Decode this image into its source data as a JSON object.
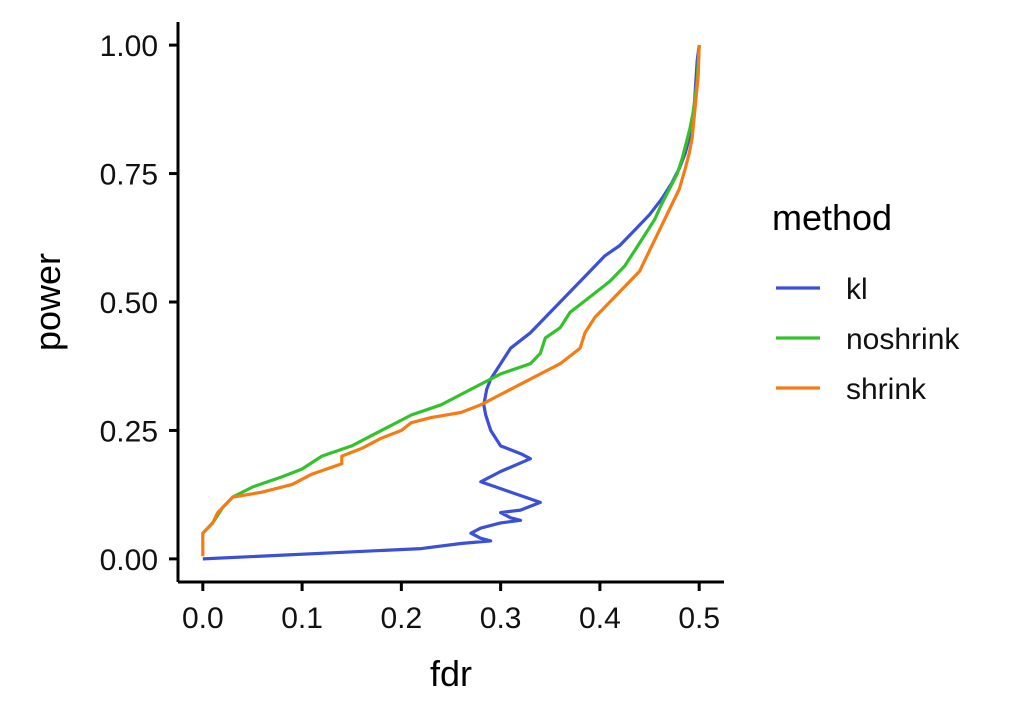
{
  "chart_data": {
    "type": "line",
    "title": "",
    "xlabel": "fdr",
    "ylabel": "power",
    "xlim": [
      -0.025,
      0.525
    ],
    "ylim": [
      -0.045,
      1.045
    ],
    "xticks": [
      0.0,
      0.1,
      0.2,
      0.3,
      0.4,
      0.5
    ],
    "xtick_labels": [
      "0.0",
      "0.1",
      "0.2",
      "0.3",
      "0.4",
      "0.5"
    ],
    "yticks": [
      0.0,
      0.25,
      0.5,
      0.75,
      1.0
    ],
    "ytick_labels": [
      "0.00",
      "0.25",
      "0.50",
      "0.75",
      "1.00"
    ],
    "grid": false,
    "legend": {
      "title": "method",
      "position": "right"
    },
    "series": [
      {
        "name": "kl",
        "color": "#3a50d6",
        "points": [
          [
            0.0,
            0.0
          ],
          [
            0.22,
            0.02
          ],
          [
            0.26,
            0.03
          ],
          [
            0.29,
            0.035
          ],
          [
            0.28,
            0.04
          ],
          [
            0.27,
            0.05
          ],
          [
            0.28,
            0.06
          ],
          [
            0.3,
            0.07
          ],
          [
            0.32,
            0.075
          ],
          [
            0.31,
            0.08
          ],
          [
            0.3,
            0.09
          ],
          [
            0.32,
            0.095
          ],
          [
            0.34,
            0.11
          ],
          [
            0.31,
            0.13
          ],
          [
            0.28,
            0.15
          ],
          [
            0.3,
            0.17
          ],
          [
            0.33,
            0.195
          ],
          [
            0.32,
            0.205
          ],
          [
            0.3,
            0.22
          ],
          [
            0.29,
            0.25
          ],
          [
            0.285,
            0.28
          ],
          [
            0.283,
            0.3
          ],
          [
            0.286,
            0.33
          ],
          [
            0.29,
            0.35
          ],
          [
            0.3,
            0.38
          ],
          [
            0.31,
            0.41
          ],
          [
            0.33,
            0.44
          ],
          [
            0.345,
            0.47
          ],
          [
            0.36,
            0.5
          ],
          [
            0.375,
            0.53
          ],
          [
            0.39,
            0.56
          ],
          [
            0.405,
            0.59
          ],
          [
            0.42,
            0.61
          ],
          [
            0.435,
            0.64
          ],
          [
            0.45,
            0.67
          ],
          [
            0.462,
            0.7
          ],
          [
            0.472,
            0.73
          ],
          [
            0.48,
            0.76
          ],
          [
            0.486,
            0.79
          ],
          [
            0.49,
            0.82
          ],
          [
            0.493,
            0.85
          ],
          [
            0.495,
            0.88
          ],
          [
            0.496,
            0.91
          ],
          [
            0.497,
            0.94
          ],
          [
            0.498,
            0.97
          ],
          [
            0.5,
            1.0
          ]
        ]
      },
      {
        "name": "noshrink",
        "color": "#34c22c",
        "points": [
          [
            0.0,
            0.05
          ],
          [
            0.005,
            0.06
          ],
          [
            0.01,
            0.07
          ],
          [
            0.02,
            0.1
          ],
          [
            0.03,
            0.12
          ],
          [
            0.05,
            0.14
          ],
          [
            0.08,
            0.16
          ],
          [
            0.1,
            0.175
          ],
          [
            0.12,
            0.2
          ],
          [
            0.15,
            0.22
          ],
          [
            0.17,
            0.24
          ],
          [
            0.19,
            0.26
          ],
          [
            0.21,
            0.28
          ],
          [
            0.24,
            0.3
          ],
          [
            0.26,
            0.32
          ],
          [
            0.28,
            0.34
          ],
          [
            0.3,
            0.36
          ],
          [
            0.33,
            0.38
          ],
          [
            0.34,
            0.4
          ],
          [
            0.345,
            0.43
          ],
          [
            0.36,
            0.45
          ],
          [
            0.37,
            0.48
          ],
          [
            0.39,
            0.51
          ],
          [
            0.41,
            0.54
          ],
          [
            0.425,
            0.57
          ],
          [
            0.435,
            0.6
          ],
          [
            0.445,
            0.63
          ],
          [
            0.455,
            0.66
          ],
          [
            0.462,
            0.69
          ],
          [
            0.47,
            0.72
          ],
          [
            0.478,
            0.75
          ],
          [
            0.483,
            0.78
          ],
          [
            0.487,
            0.81
          ],
          [
            0.491,
            0.84
          ],
          [
            0.494,
            0.87
          ],
          [
            0.496,
            0.9
          ],
          [
            0.498,
            0.93
          ],
          [
            0.5,
            1.0
          ]
        ]
      },
      {
        "name": "shrink",
        "color": "#f57c14",
        "points": [
          [
            0.0,
            0.005
          ],
          [
            0.0,
            0.05
          ],
          [
            0.01,
            0.07
          ],
          [
            0.015,
            0.09
          ],
          [
            0.02,
            0.1
          ],
          [
            0.03,
            0.12
          ],
          [
            0.06,
            0.13
          ],
          [
            0.09,
            0.145
          ],
          [
            0.11,
            0.165
          ],
          [
            0.14,
            0.185
          ],
          [
            0.14,
            0.2
          ],
          [
            0.16,
            0.215
          ],
          [
            0.18,
            0.235
          ],
          [
            0.2,
            0.25
          ],
          [
            0.21,
            0.265
          ],
          [
            0.23,
            0.275
          ],
          [
            0.26,
            0.285
          ],
          [
            0.28,
            0.3
          ],
          [
            0.3,
            0.32
          ],
          [
            0.32,
            0.34
          ],
          [
            0.34,
            0.36
          ],
          [
            0.36,
            0.38
          ],
          [
            0.38,
            0.41
          ],
          [
            0.385,
            0.44
          ],
          [
            0.395,
            0.47
          ],
          [
            0.41,
            0.5
          ],
          [
            0.425,
            0.53
          ],
          [
            0.44,
            0.56
          ],
          [
            0.45,
            0.6
          ],
          [
            0.46,
            0.64
          ],
          [
            0.47,
            0.68
          ],
          [
            0.48,
            0.72
          ],
          [
            0.486,
            0.76
          ],
          [
            0.49,
            0.79
          ],
          [
            0.493,
            0.82
          ],
          [
            0.495,
            0.86
          ],
          [
            0.497,
            0.9
          ],
          [
            0.499,
            0.94
          ],
          [
            0.5,
            1.0
          ]
        ]
      }
    ]
  }
}
